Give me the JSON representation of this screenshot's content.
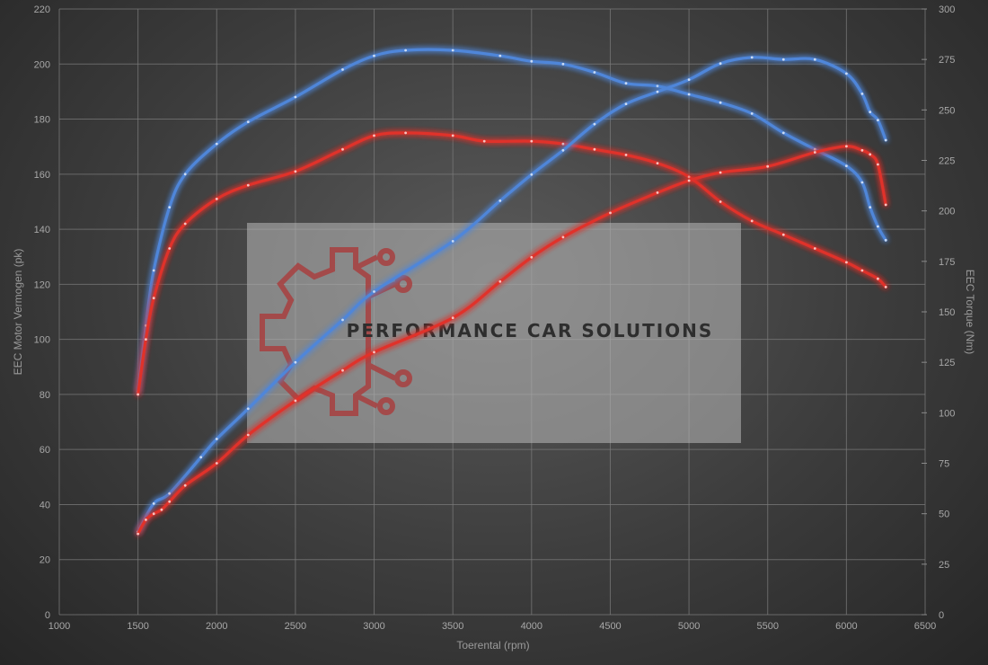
{
  "chart_data": {
    "type": "line",
    "xlabel": "Toerental (rpm)",
    "ylabel": "EEC Motor Vermogen (pk)",
    "y2label": "EEC Torque (Nm)",
    "xlim": [
      1000,
      6500
    ],
    "ylim": [
      0,
      220
    ],
    "y2lim": [
      0,
      300
    ],
    "x_ticks": [
      "1000",
      "1500",
      "2000",
      "2500",
      "3000",
      "3500",
      "4000",
      "4500",
      "5000",
      "5500",
      "6000",
      "6500"
    ],
    "y_ticks": [
      "0",
      "20",
      "40",
      "60",
      "80",
      "100",
      "120",
      "140",
      "160",
      "180",
      "200",
      "220"
    ],
    "y2_ticks": [
      "0",
      "25",
      "50",
      "75",
      "100",
      "125",
      "150",
      "175",
      "200",
      "225",
      "250",
      "275",
      "300"
    ],
    "grid": true,
    "series": [
      {
        "key": "tuned_power",
        "color": "#4f86d9",
        "axis": "left",
        "x": [
          1500,
          1550,
          1600,
          1700,
          1800,
          2000,
          2200,
          2500,
          2800,
          3000,
          3200,
          3500,
          3800,
          4000,
          4200,
          4400,
          4600,
          4800,
          5000,
          5200,
          5400,
          5600,
          5800,
          6000,
          6100,
          6150,
          6200,
          6250
        ],
        "y": [
          81,
          105,
          125,
          148,
          160,
          171,
          179,
          188,
          198,
          203,
          205,
          205,
          203,
          201,
          200,
          197,
          193,
          192,
          189,
          186,
          182,
          175,
          169,
          163,
          157,
          148,
          141,
          136
        ]
      },
      {
        "key": "stock_power",
        "color": "#e0302c",
        "axis": "left",
        "x": [
          1500,
          1550,
          1600,
          1700,
          1800,
          2000,
          2200,
          2500,
          2800,
          3000,
          3200,
          3500,
          3700,
          4000,
          4200,
          4400,
          4600,
          4800,
          5000,
          5200,
          5400,
          5600,
          5800,
          6000,
          6100,
          6200,
          6250
        ],
        "y": [
          80,
          100,
          115,
          133,
          142,
          151,
          156,
          161,
          169,
          174,
          175,
          174,
          172,
          172,
          171,
          169,
          167,
          164,
          159,
          150,
          143,
          138,
          133,
          128,
          125,
          122,
          119
        ]
      },
      {
        "key": "tuned_torque",
        "color": "#4f86d9",
        "axis": "right",
        "x": [
          1500,
          1600,
          1700,
          1900,
          2000,
          2200,
          2500,
          2800,
          3000,
          3500,
          3800,
          4000,
          4200,
          4400,
          4600,
          4800,
          5000,
          5200,
          5400,
          5600,
          5800,
          6000,
          6100,
          6150,
          6200,
          6250
        ],
        "y": [
          41,
          55,
          60,
          78,
          87,
          102,
          125,
          146,
          160,
          185,
          205,
          218,
          230,
          243,
          253,
          259,
          265,
          273,
          276,
          275,
          275,
          268,
          258,
          249,
          245,
          235
        ]
      },
      {
        "key": "stock_torque",
        "color": "#e0302c",
        "axis": "right",
        "x": [
          1500,
          1550,
          1600,
          1650,
          1700,
          1800,
          2000,
          2200,
          2500,
          2800,
          3000,
          3500,
          3800,
          4000,
          4200,
          4500,
          4800,
          5000,
          5200,
          5500,
          5800,
          6000,
          6100,
          6150,
          6200,
          6250
        ],
        "y": [
          40,
          47,
          50,
          52,
          56,
          64,
          75,
          89,
          106,
          121,
          130,
          147,
          165,
          177,
          187,
          199,
          209,
          215,
          219,
          222,
          229,
          232,
          230,
          228,
          223,
          203
        ]
      }
    ]
  },
  "watermark": {
    "brand": "PERFORMANCE CAR SOLUTIONS",
    "logo_icon": "gear-circuit-logo-icon",
    "logo_color": "#a84040"
  }
}
